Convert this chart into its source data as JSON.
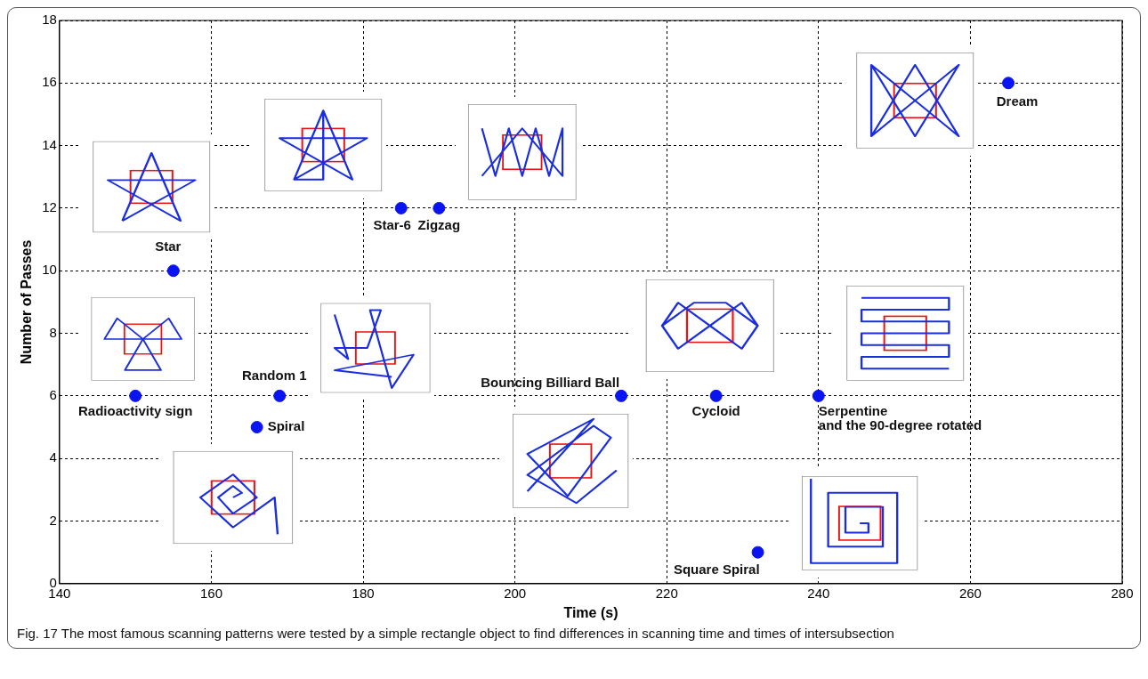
{
  "chart_data": {
    "type": "scatter",
    "xlabel": "Time (s)",
    "ylabel": "Number of Passes",
    "x": [
      155,
      150,
      169,
      166,
      185,
      190,
      214,
      226.5,
      240,
      232,
      265
    ],
    "values": [
      10,
      6,
      6,
      5,
      12,
      12,
      6,
      6,
      6,
      1,
      16
    ],
    "color": "#0a14f0",
    "marker": "circle",
    "xlim": [
      140,
      280
    ],
    "xticks": [
      140,
      160,
      180,
      200,
      220,
      240,
      260,
      280
    ],
    "ylim": [
      0,
      18
    ],
    "yticks": [
      0,
      2,
      4,
      6,
      8,
      10,
      12,
      14,
      16,
      18
    ],
    "grid": true,
    "legend": false,
    "annotations": [
      {
        "text": "Star",
        "x": 155,
        "y": 10
      },
      {
        "text": "Radioactivity sign",
        "x": 150,
        "y": 6
      },
      {
        "text": "Random 1",
        "x": 169,
        "y": 6
      },
      {
        "text": "Spiral",
        "x": 166,
        "y": 5
      },
      {
        "text": "Star-6",
        "x": 185,
        "y": 12
      },
      {
        "text": "Zigzag",
        "x": 190,
        "y": 12
      },
      {
        "text": "Bouncing Billiard Ball",
        "x": 214,
        "y": 6
      },
      {
        "text": "Cycloid",
        "x": 226.5,
        "y": 6
      },
      {
        "text": "Serpentine\nand the 90-degree rotated",
        "x": 240,
        "y": 6
      },
      {
        "text": "Square Spiral",
        "x": 232,
        "y": 1
      },
      {
        "text": "Dream",
        "x": 265,
        "y": 16
      },
      "Fig. 17 The most famous scanning patterns were tested by a simple rectangle object to find differences in scanning time and times of intersubsection"
    ]
  }
}
